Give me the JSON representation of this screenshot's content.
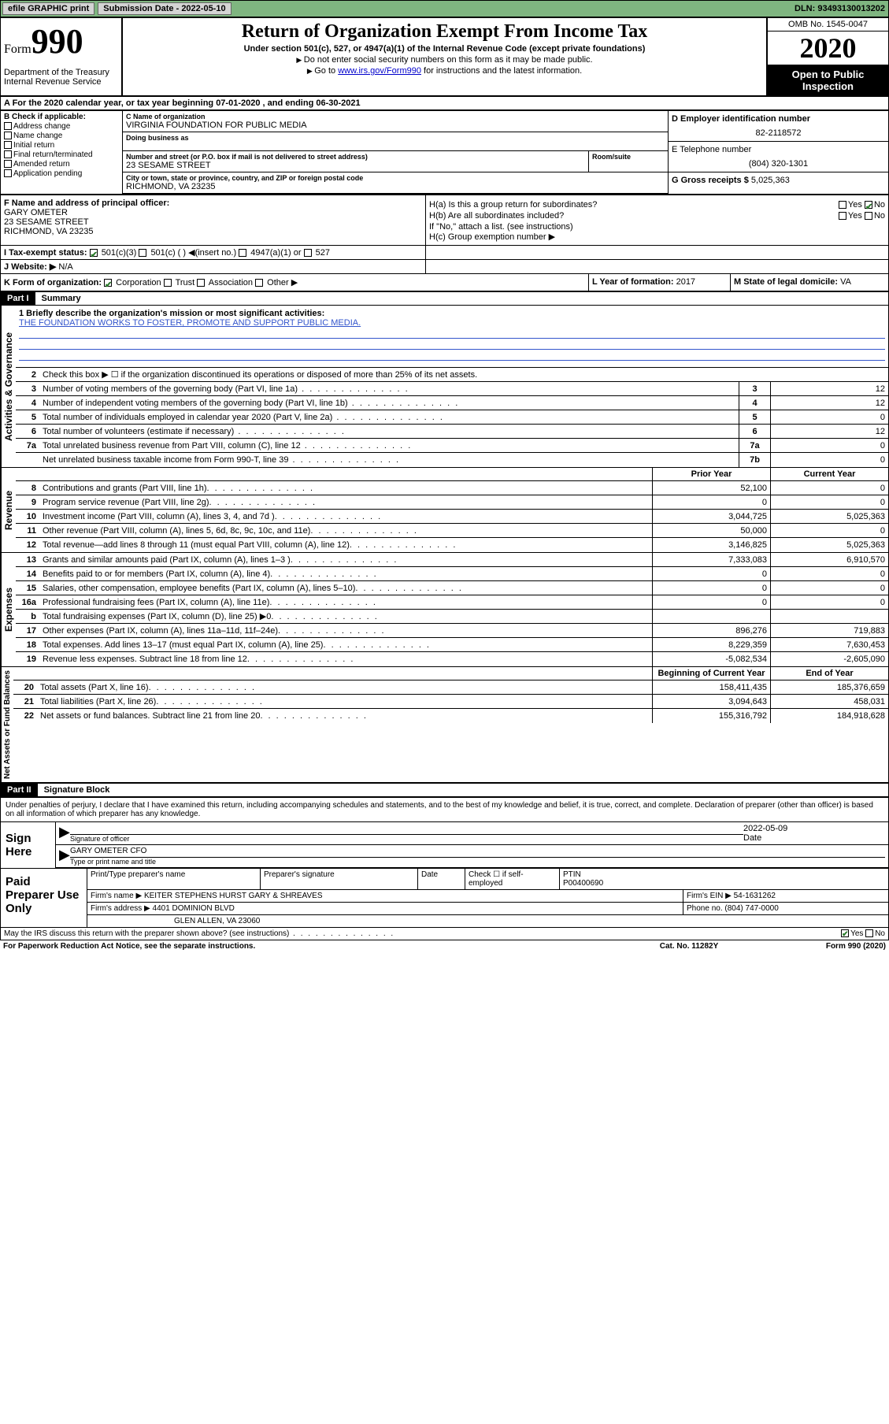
{
  "topbar": {
    "efile": "efile GRAPHIC print",
    "sub_label": "Submission Date - 2022-05-10",
    "dln": "DLN: 93493130013202"
  },
  "header": {
    "form": "Form",
    "num": "990",
    "dept": "Department of the Treasury Internal Revenue Service",
    "title": "Return of Organization Exempt From Income Tax",
    "sub": "Under section 501(c), 527, or 4947(a)(1) of the Internal Revenue Code (except private foundations)",
    "note1": "Do not enter social security numbers on this form as it may be made public.",
    "note2_pre": "Go to ",
    "note2_link": "www.irs.gov/Form990",
    "note2_post": " for instructions and the latest information.",
    "omb": "OMB No. 1545-0047",
    "year": "2020",
    "inspection": "Open to Public Inspection"
  },
  "period": "A For the 2020 calendar year, or tax year beginning 07-01-2020 , and ending 06-30-2021",
  "b": {
    "label": "B Check if applicable:",
    "items": [
      "Address change",
      "Name change",
      "Initial return",
      "Final return/terminated",
      "Amended return",
      "Application pending"
    ]
  },
  "c": {
    "name_lbl": "C Name of organization",
    "name": "VIRGINIA FOUNDATION FOR PUBLIC MEDIA",
    "dba_lbl": "Doing business as",
    "street_lbl": "Number and street (or P.O. box if mail is not delivered to street address)",
    "street": "23 SESAME STREET",
    "room_lbl": "Room/suite",
    "city_lbl": "City or town, state or province, country, and ZIP or foreign postal code",
    "city": "RICHMOND, VA  23235"
  },
  "d": {
    "ein_lbl": "D Employer identification number",
    "ein": "82-2118572",
    "tel_lbl": "E Telephone number",
    "tel": "(804) 320-1301",
    "gross_lbl": "G Gross receipts $",
    "gross": "5,025,363"
  },
  "f": {
    "lbl": "F Name and address of principal officer:",
    "name": "GARY OMETER",
    "street": "23 SESAME STREET",
    "city": "RICHMOND, VA  23235"
  },
  "h": {
    "a": "H(a) Is this a group return for subordinates?",
    "b": "H(b) Are all subordinates included?",
    "bnote": "If \"No,\" attach a list. (see instructions)",
    "c": "H(c) Group exemption number ▶",
    "yes": "Yes",
    "no": "No"
  },
  "i": {
    "lbl": "I Tax-exempt status:",
    "opts": [
      "501(c)(3)",
      "501(c) (  ) ◀(insert no.)",
      "4947(a)(1) or",
      "527"
    ]
  },
  "j": {
    "lbl": "J Website: ▶",
    "val": "N/A"
  },
  "k": {
    "lbl": "K Form of organization:",
    "opts": [
      "Corporation",
      "Trust",
      "Association",
      "Other ▶"
    ]
  },
  "l": {
    "lbl": "L Year of formation:",
    "val": "2017"
  },
  "m": {
    "lbl": "M State of legal domicile:",
    "val": "VA"
  },
  "part1": {
    "hdr": "Part I",
    "title": "Summary",
    "q1_lbl": "1  Briefly describe the organization's mission or most significant activities:",
    "q1_val": "THE FOUNDATION WORKS TO FOSTER, PROMOTE AND SUPPORT PUBLIC MEDIA.",
    "q2": "Check this box ▶ ☐ if the organization discontinued its operations or disposed of more than 25% of its net assets.",
    "vert_ag": "Activities & Governance",
    "vert_rev": "Revenue",
    "vert_exp": "Expenses",
    "vert_net": "Net Assets or Fund Balances",
    "lines_single": [
      {
        "n": "3",
        "t": "Number of voting members of the governing body (Part VI, line 1a)",
        "b": "3",
        "v": "12"
      },
      {
        "n": "4",
        "t": "Number of independent voting members of the governing body (Part VI, line 1b)",
        "b": "4",
        "v": "12"
      },
      {
        "n": "5",
        "t": "Total number of individuals employed in calendar year 2020 (Part V, line 2a)",
        "b": "5",
        "v": "0"
      },
      {
        "n": "6",
        "t": "Total number of volunteers (estimate if necessary)",
        "b": "6",
        "v": "12"
      },
      {
        "n": "7a",
        "t": "Total unrelated business revenue from Part VIII, column (C), line 12",
        "b": "7a",
        "v": "0"
      },
      {
        "n": "",
        "t": "Net unrelated business taxable income from Form 990-T, line 39",
        "b": "7b",
        "v": "0"
      }
    ],
    "col_prior": "Prior Year",
    "col_curr": "Current Year",
    "rev_lines": [
      {
        "n": "8",
        "t": "Contributions and grants (Part VIII, line 1h)",
        "p": "52,100",
        "c": "0"
      },
      {
        "n": "9",
        "t": "Program service revenue (Part VIII, line 2g)",
        "p": "0",
        "c": "0"
      },
      {
        "n": "10",
        "t": "Investment income (Part VIII, column (A), lines 3, 4, and 7d )",
        "p": "3,044,725",
        "c": "5,025,363"
      },
      {
        "n": "11",
        "t": "Other revenue (Part VIII, column (A), lines 5, 6d, 8c, 9c, 10c, and 11e)",
        "p": "50,000",
        "c": "0"
      },
      {
        "n": "12",
        "t": "Total revenue—add lines 8 through 11 (must equal Part VIII, column (A), line 12)",
        "p": "3,146,825",
        "c": "5,025,363"
      }
    ],
    "exp_lines": [
      {
        "n": "13",
        "t": "Grants and similar amounts paid (Part IX, column (A), lines 1–3 )",
        "p": "7,333,083",
        "c": "6,910,570"
      },
      {
        "n": "14",
        "t": "Benefits paid to or for members (Part IX, column (A), line 4)",
        "p": "0",
        "c": "0"
      },
      {
        "n": "15",
        "t": "Salaries, other compensation, employee benefits (Part IX, column (A), lines 5–10)",
        "p": "0",
        "c": "0"
      },
      {
        "n": "16a",
        "t": "Professional fundraising fees (Part IX, column (A), line 11e)",
        "p": "0",
        "c": "0"
      },
      {
        "n": "b",
        "t": "Total fundraising expenses (Part IX, column (D), line 25) ▶0",
        "p": "",
        "c": ""
      },
      {
        "n": "17",
        "t": "Other expenses (Part IX, column (A), lines 11a–11d, 11f–24e)",
        "p": "896,276",
        "c": "719,883"
      },
      {
        "n": "18",
        "t": "Total expenses. Add lines 13–17 (must equal Part IX, column (A), line 25)",
        "p": "8,229,359",
        "c": "7,630,453"
      },
      {
        "n": "19",
        "t": "Revenue less expenses. Subtract line 18 from line 12",
        "p": "-5,082,534",
        "c": "-2,605,090"
      }
    ],
    "col_beg": "Beginning of Current Year",
    "col_end": "End of Year",
    "net_lines": [
      {
        "n": "20",
        "t": "Total assets (Part X, line 16)",
        "p": "158,411,435",
        "c": "185,376,659"
      },
      {
        "n": "21",
        "t": "Total liabilities (Part X, line 26)",
        "p": "3,094,643",
        "c": "458,031"
      },
      {
        "n": "22",
        "t": "Net assets or fund balances. Subtract line 21 from line 20",
        "p": "155,316,792",
        "c": "184,918,628"
      }
    ]
  },
  "part2": {
    "hdr": "Part II",
    "title": "Signature Block",
    "intro": "Under penalties of perjury, I declare that I have examined this return, including accompanying schedules and statements, and to the best of my knowledge and belief, it is true, correct, and complete. Declaration of preparer (other than officer) is based on all information of which preparer has any knowledge.",
    "sign_here": "Sign Here",
    "sig_lbl": "Signature of officer",
    "date_lbl": "Date",
    "date_val": "2022-05-09",
    "name_val": "GARY OMETER  CFO",
    "name_lbl": "Type or print name and title",
    "paid": "Paid Preparer Use Only",
    "prep_name_lbl": "Print/Type preparer's name",
    "prep_sig_lbl": "Preparer's signature",
    "prep_date_lbl": "Date",
    "check_lbl": "Check ☐ if self-employed",
    "ptin_lbl": "PTIN",
    "ptin_val": "P00400690",
    "firm_name_lbl": "Firm's name ▶",
    "firm_name": "KEITER STEPHENS HURST GARY & SHREAVES",
    "firm_ein_lbl": "Firm's EIN ▶",
    "firm_ein": "54-1631262",
    "firm_addr_lbl": "Firm's address ▶",
    "firm_addr1": "4401 DOMINION BLVD",
    "firm_addr2": "GLEN ALLEN, VA  23060",
    "phone_lbl": "Phone no.",
    "phone_val": "(804) 747-0000",
    "discuss": "May the IRS discuss this return with the preparer shown above? (see instructions)"
  },
  "footer": {
    "paperwork": "For Paperwork Reduction Act Notice, see the separate instructions.",
    "cat": "Cat. No. 11282Y",
    "form": "Form 990 (2020)"
  }
}
